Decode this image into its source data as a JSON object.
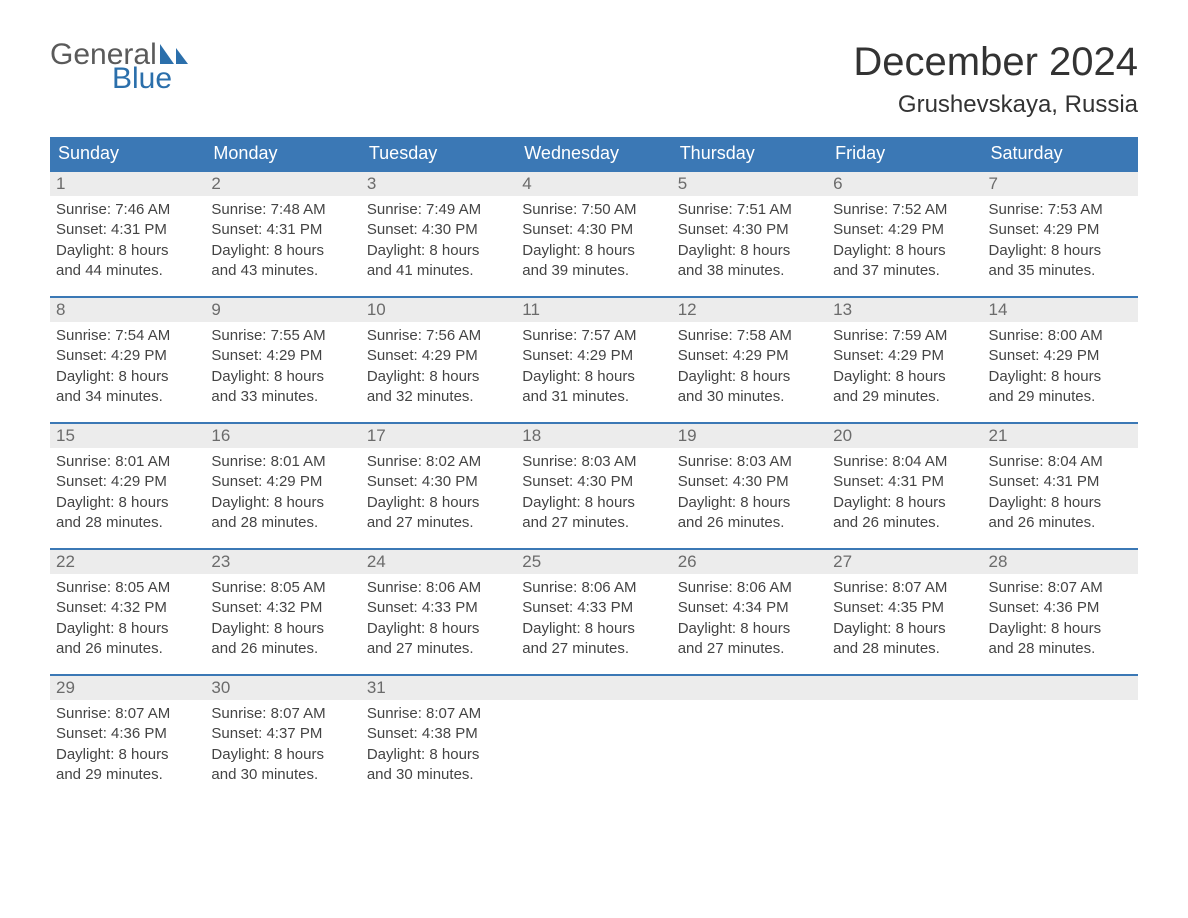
{
  "logo": {
    "text1": "General",
    "text2": "Blue",
    "sail_color": "#2b6fab"
  },
  "title": "December 2024",
  "location": "Grushevskaya, Russia",
  "colors": {
    "header_bg": "#3b78b5",
    "header_text": "#ffffff",
    "daynum_bg": "#ececec",
    "daynum_text": "#6b6b6b",
    "body_text": "#444444",
    "week_border": "#3b78b5"
  },
  "day_headers": [
    "Sunday",
    "Monday",
    "Tuesday",
    "Wednesday",
    "Thursday",
    "Friday",
    "Saturday"
  ],
  "labels": {
    "sunrise": "Sunrise:",
    "sunset": "Sunset:",
    "daylight": "Daylight:"
  },
  "weeks": [
    [
      {
        "n": "1",
        "sr": "7:46 AM",
        "ss": "4:31 PM",
        "dl": "8 hours and 44 minutes."
      },
      {
        "n": "2",
        "sr": "7:48 AM",
        "ss": "4:31 PM",
        "dl": "8 hours and 43 minutes."
      },
      {
        "n": "3",
        "sr": "7:49 AM",
        "ss": "4:30 PM",
        "dl": "8 hours and 41 minutes."
      },
      {
        "n": "4",
        "sr": "7:50 AM",
        "ss": "4:30 PM",
        "dl": "8 hours and 39 minutes."
      },
      {
        "n": "5",
        "sr": "7:51 AM",
        "ss": "4:30 PM",
        "dl": "8 hours and 38 minutes."
      },
      {
        "n": "6",
        "sr": "7:52 AM",
        "ss": "4:29 PM",
        "dl": "8 hours and 37 minutes."
      },
      {
        "n": "7",
        "sr": "7:53 AM",
        "ss": "4:29 PM",
        "dl": "8 hours and 35 minutes."
      }
    ],
    [
      {
        "n": "8",
        "sr": "7:54 AM",
        "ss": "4:29 PM",
        "dl": "8 hours and 34 minutes."
      },
      {
        "n": "9",
        "sr": "7:55 AM",
        "ss": "4:29 PM",
        "dl": "8 hours and 33 minutes."
      },
      {
        "n": "10",
        "sr": "7:56 AM",
        "ss": "4:29 PM",
        "dl": "8 hours and 32 minutes."
      },
      {
        "n": "11",
        "sr": "7:57 AM",
        "ss": "4:29 PM",
        "dl": "8 hours and 31 minutes."
      },
      {
        "n": "12",
        "sr": "7:58 AM",
        "ss": "4:29 PM",
        "dl": "8 hours and 30 minutes."
      },
      {
        "n": "13",
        "sr": "7:59 AM",
        "ss": "4:29 PM",
        "dl": "8 hours and 29 minutes."
      },
      {
        "n": "14",
        "sr": "8:00 AM",
        "ss": "4:29 PM",
        "dl": "8 hours and 29 minutes."
      }
    ],
    [
      {
        "n": "15",
        "sr": "8:01 AM",
        "ss": "4:29 PM",
        "dl": "8 hours and 28 minutes."
      },
      {
        "n": "16",
        "sr": "8:01 AM",
        "ss": "4:29 PM",
        "dl": "8 hours and 28 minutes."
      },
      {
        "n": "17",
        "sr": "8:02 AM",
        "ss": "4:30 PM",
        "dl": "8 hours and 27 minutes."
      },
      {
        "n": "18",
        "sr": "8:03 AM",
        "ss": "4:30 PM",
        "dl": "8 hours and 27 minutes."
      },
      {
        "n": "19",
        "sr": "8:03 AM",
        "ss": "4:30 PM",
        "dl": "8 hours and 26 minutes."
      },
      {
        "n": "20",
        "sr": "8:04 AM",
        "ss": "4:31 PM",
        "dl": "8 hours and 26 minutes."
      },
      {
        "n": "21",
        "sr": "8:04 AM",
        "ss": "4:31 PM",
        "dl": "8 hours and 26 minutes."
      }
    ],
    [
      {
        "n": "22",
        "sr": "8:05 AM",
        "ss": "4:32 PM",
        "dl": "8 hours and 26 minutes."
      },
      {
        "n": "23",
        "sr": "8:05 AM",
        "ss": "4:32 PM",
        "dl": "8 hours and 26 minutes."
      },
      {
        "n": "24",
        "sr": "8:06 AM",
        "ss": "4:33 PM",
        "dl": "8 hours and 27 minutes."
      },
      {
        "n": "25",
        "sr": "8:06 AM",
        "ss": "4:33 PM",
        "dl": "8 hours and 27 minutes."
      },
      {
        "n": "26",
        "sr": "8:06 AM",
        "ss": "4:34 PM",
        "dl": "8 hours and 27 minutes."
      },
      {
        "n": "27",
        "sr": "8:07 AM",
        "ss": "4:35 PM",
        "dl": "8 hours and 28 minutes."
      },
      {
        "n": "28",
        "sr": "8:07 AM",
        "ss": "4:36 PM",
        "dl": "8 hours and 28 minutes."
      }
    ],
    [
      {
        "n": "29",
        "sr": "8:07 AM",
        "ss": "4:36 PM",
        "dl": "8 hours and 29 minutes."
      },
      {
        "n": "30",
        "sr": "8:07 AM",
        "ss": "4:37 PM",
        "dl": "8 hours and 30 minutes."
      },
      {
        "n": "31",
        "sr": "8:07 AM",
        "ss": "4:38 PM",
        "dl": "8 hours and 30 minutes."
      },
      null,
      null,
      null,
      null
    ]
  ]
}
